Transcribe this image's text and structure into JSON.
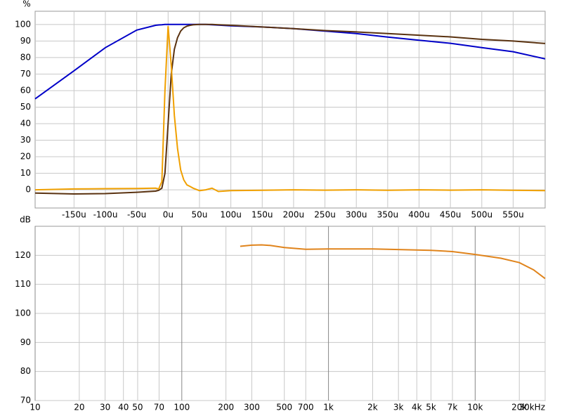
{
  "chart_data": [
    {
      "type": "line",
      "ylabel": "%",
      "x": [
        -212,
        -150,
        -100,
        -50,
        -20,
        -15,
        -10,
        -5,
        0,
        5,
        10,
        15,
        20,
        25,
        30,
        35,
        40,
        50,
        60,
        70,
        80,
        100,
        150,
        200,
        250,
        300,
        350,
        400,
        450,
        500,
        550,
        601
      ],
      "series": [
        {
          "color": "#0000c8",
          "values": [
            55,
            72,
            86,
            96.6,
            99.5,
            99.7,
            99.8,
            100,
            100,
            100,
            100,
            100,
            100,
            100,
            100,
            100,
            100,
            100,
            100,
            99.8,
            99.6,
            99.2,
            98.5,
            97.5,
            96,
            94.5,
            92.4,
            90.5,
            88.6,
            86,
            83.5,
            79.2
          ]
        },
        {
          "color": "#5a3210",
          "values": [
            -2,
            -2.5,
            -2.3,
            -1.5,
            -0.8,
            -0.3,
            1,
            10,
            40,
            70,
            85,
            92,
            96,
            98,
            99,
            99.5,
            99.8,
            100,
            100,
            100,
            99.8,
            99.5,
            98.5,
            97.5,
            96.3,
            95.5,
            94.5,
            93.5,
            92.5,
            91,
            90,
            88.5
          ]
        },
        {
          "color": "#f0a000",
          "values": [
            0,
            0.5,
            0.7,
            0.8,
            1,
            0.5,
            5,
            60,
            99,
            75,
            45,
            25,
            12,
            6,
            3,
            2,
            1,
            -0.5,
            0,
            1,
            -1,
            -0.5,
            -0.3,
            0,
            -0.2,
            0,
            -0.3,
            0,
            -0.2,
            0,
            -0.3,
            -0.5
          ]
        }
      ],
      "xlim": [
        -212,
        601
      ],
      "ylim": [
        -11,
        108
      ],
      "xticks": [
        {
          "value": -150,
          "label": "-150u"
        },
        {
          "value": -100,
          "label": "-100u"
        },
        {
          "value": -50,
          "label": "-50u"
        },
        {
          "value": 0,
          "label": "0u"
        },
        {
          "value": 50,
          "label": "50u"
        },
        {
          "value": 100,
          "label": "100u"
        },
        {
          "value": 150,
          "label": "150u"
        },
        {
          "value": 200,
          "label": "200u"
        },
        {
          "value": 250,
          "label": "250u"
        },
        {
          "value": 300,
          "label": "300u"
        },
        {
          "value": 350,
          "label": "350u"
        },
        {
          "value": 400,
          "label": "400u"
        },
        {
          "value": 450,
          "label": "450u"
        },
        {
          "value": 500,
          "label": "500u"
        },
        {
          "value": 550,
          "label": "550u"
        }
      ],
      "yticks": [
        0,
        10,
        20,
        30,
        40,
        50,
        60,
        70,
        80,
        90,
        100
      ],
      "grid": true
    },
    {
      "type": "line",
      "ylabel": "dB",
      "xscale": "log",
      "x": [
        250,
        300,
        350,
        400,
        500,
        700,
        1000,
        2000,
        3000,
        5000,
        7000,
        10000,
        15000,
        20000,
        25000,
        30000
      ],
      "series": [
        {
          "color": "#e0841c",
          "values": [
            123.1,
            123.5,
            123.6,
            123.4,
            122.7,
            122.1,
            122.2,
            122.2,
            122,
            121.7,
            121.3,
            120.3,
            119,
            117.5,
            115,
            112
          ]
        }
      ],
      "xlim": [
        10,
        30000
      ],
      "ylim": [
        70,
        130
      ],
      "xticks": [
        10,
        20,
        30,
        40,
        50,
        70,
        100,
        200,
        300,
        500,
        700,
        {
          "value": 1000,
          "label": "1k"
        },
        {
          "value": 2000,
          "label": "2k"
        },
        {
          "value": 3000,
          "label": "3k"
        },
        {
          "value": 4000,
          "label": "4k"
        },
        {
          "value": 5000,
          "label": "5k"
        },
        {
          "value": 7000,
          "label": "7k"
        },
        {
          "value": 10000,
          "label": "10k"
        },
        {
          "value": 20000,
          "label": "20k"
        },
        {
          "value": 30000,
          "label": "30kHz"
        }
      ],
      "yticks": [
        70,
        80,
        90,
        100,
        110,
        120
      ],
      "grid": true
    }
  ]
}
